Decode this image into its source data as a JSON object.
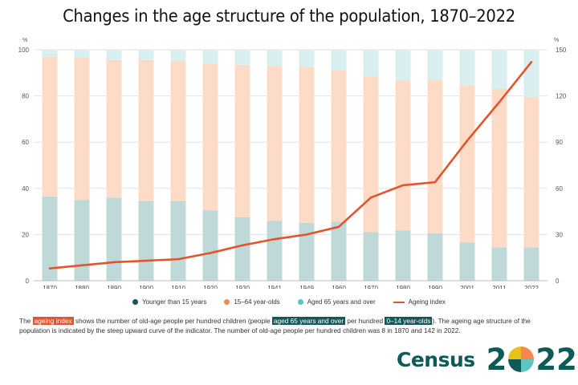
{
  "title": "Changes in the age structure of the population, 1870–2022",
  "colors": {
    "young": "#0f5a57",
    "young_bar": "#bfd8d8",
    "working": "#f4894e",
    "working_bar": "#fcdcc6",
    "old": "#5cc7c1",
    "old_bar": "#d9efef",
    "index_line": "#e3542b",
    "grid": "#e3e3e3"
  },
  "chart_data": {
    "type": "bar",
    "stacked": true,
    "categories": [
      "1870",
      "1880",
      "1890",
      "1900",
      "1910",
      "1920",
      "1930",
      "1941",
      "1949",
      "1960",
      "1970",
      "1980",
      "1990",
      "2001",
      "2011",
      "2022"
    ],
    "series": [
      {
        "name": "Younger than 15 years",
        "axis": "left",
        "values": [
          36.5,
          35,
          36,
          34.5,
          34.5,
          30.5,
          27.5,
          26,
          25,
          25.5,
          21,
          21.7,
          20.5,
          16.5,
          14.5,
          14.5
        ]
      },
      {
        "name": "15–64 year-olds",
        "axis": "left",
        "values": [
          60.5,
          61.5,
          59.5,
          61,
          60.5,
          63.5,
          66,
          67,
          67.5,
          65.5,
          67.5,
          65,
          66.5,
          68,
          68.5,
          65
        ]
      },
      {
        "name": "Aged 65 years and over",
        "axis": "left",
        "values": [
          3,
          3.5,
          4.5,
          4.5,
          5,
          6,
          6.5,
          7,
          7.5,
          9,
          11.5,
          13.3,
          13,
          15.5,
          17,
          20.5
        ]
      },
      {
        "name": "Ageing index",
        "type": "line",
        "axis": "right",
        "values": [
          8,
          10,
          12,
          13,
          14,
          18,
          23,
          27,
          30,
          35,
          54,
          62,
          64,
          91,
          116,
          142
        ]
      }
    ],
    "ylim": [
      0,
      100
    ],
    "y_ticks": [
      "0",
      "20",
      "40",
      "60",
      "80",
      "100"
    ],
    "ylabel": "%",
    "y2lim": [
      0,
      150
    ],
    "y2_ticks": [
      "0",
      "30",
      "60",
      "90",
      "120",
      "150"
    ],
    "y2label": "%",
    "grid": true,
    "legend_position": "bottom"
  },
  "legend": [
    {
      "label": "Younger than 15 years",
      "kind": "dot",
      "color": "#0f5a57"
    },
    {
      "label": "15–64 year-olds",
      "kind": "dot",
      "color": "#f4894e"
    },
    {
      "label": "Aged 65 years and over",
      "kind": "dot",
      "color": "#5cc7c1"
    },
    {
      "label": "Ageing index",
      "kind": "line",
      "color": "#e3542b"
    }
  ],
  "note": {
    "p1": "The ",
    "h1": "ageing index",
    "p2": " shows the number of old-age people per hundred children (people ",
    "h2": "aged 65 years and over",
    "p3": " per hundred ",
    "h3": "0–14 year-olds",
    "p4": "). The ageing age structure of the population is indicated by the steep upward curve of the indicator. The number of old-age people per hundred children was 8 in 1870 and 142 in 2022."
  },
  "logo": {
    "word": "Census",
    "left_digits": "2",
    "right_digits": "22"
  }
}
